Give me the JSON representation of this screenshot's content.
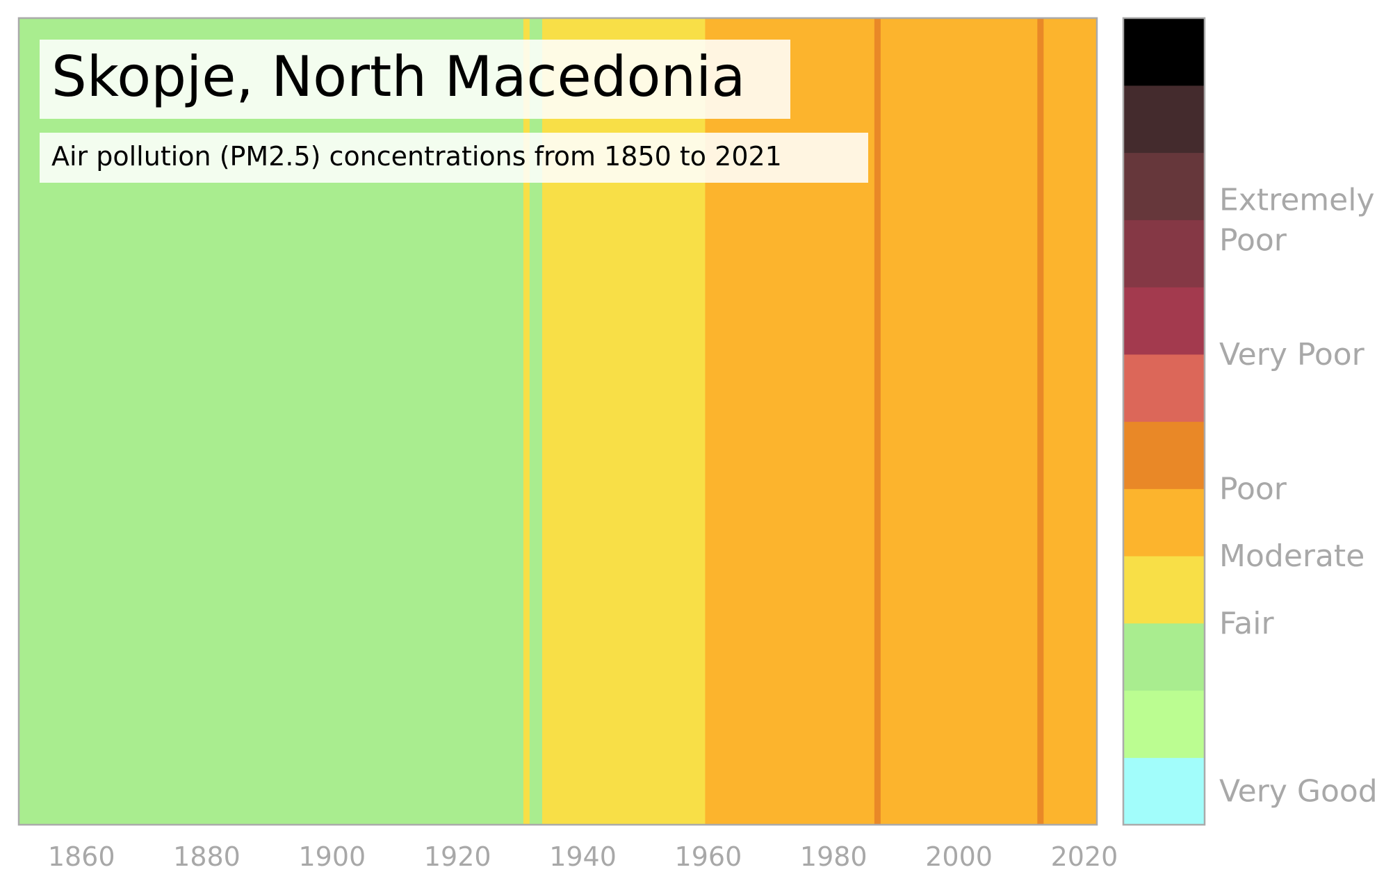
{
  "chart_data": {
    "type": "heatmap",
    "title": "Skopje, North Macedonia",
    "subtitle": "Air pollution (PM2.5) concentrations from 1850 to 2021",
    "xlim": [
      1850,
      2022
    ],
    "x_ticks": [
      1860,
      1880,
      1900,
      1920,
      1940,
      1960,
      1980,
      2000,
      2020
    ],
    "grid": false,
    "stripes": [
      {
        "from": 1850,
        "to": 1930.5,
        "level": "Fair"
      },
      {
        "from": 1930.5,
        "to": 1931.5,
        "level": "Moderate"
      },
      {
        "from": 1931.5,
        "to": 1933.5,
        "level": "Fair"
      },
      {
        "from": 1933.5,
        "to": 1959.5,
        "level": "Moderate"
      },
      {
        "from": 1959.5,
        "to": 1986.5,
        "level": "Poor"
      },
      {
        "from": 1986.5,
        "to": 1987.5,
        "level": "Poor (upper)"
      },
      {
        "from": 1987.5,
        "to": 2012.5,
        "level": "Poor"
      },
      {
        "from": 2012.5,
        "to": 2013.5,
        "level": "Poor (upper)"
      },
      {
        "from": 2013.5,
        "to": 2022,
        "level": "Poor"
      }
    ],
    "level_colors": {
      "Fair": "#a9ed8f",
      "Moderate": "#f8df47",
      "Poor": "#fcb42d",
      "Poor (upper)": "#e98827"
    },
    "colorbar": {
      "swatches_bottom_to_top": [
        "#a2fdfb",
        "#bbfd91",
        "#a9ed8f",
        "#f8df47",
        "#fcb42d",
        "#e98827",
        "#dc6759",
        "#a33a4e",
        "#853845",
        "#66373b",
        "#442b2d",
        "#000000"
      ],
      "labels": [
        {
          "lines": [
            "Very Good"
          ],
          "at": 0.5
        },
        {
          "lines": [
            "Fair"
          ],
          "at": 3.0
        },
        {
          "lines": [
            "Moderate"
          ],
          "at": 4.0
        },
        {
          "lines": [
            "Poor"
          ],
          "at": 5.0
        },
        {
          "lines": [
            "Very Poor"
          ],
          "at": 7.0
        },
        {
          "lines": [
            "Extremely",
            "Poor"
          ],
          "at": 9.0
        }
      ]
    }
  }
}
